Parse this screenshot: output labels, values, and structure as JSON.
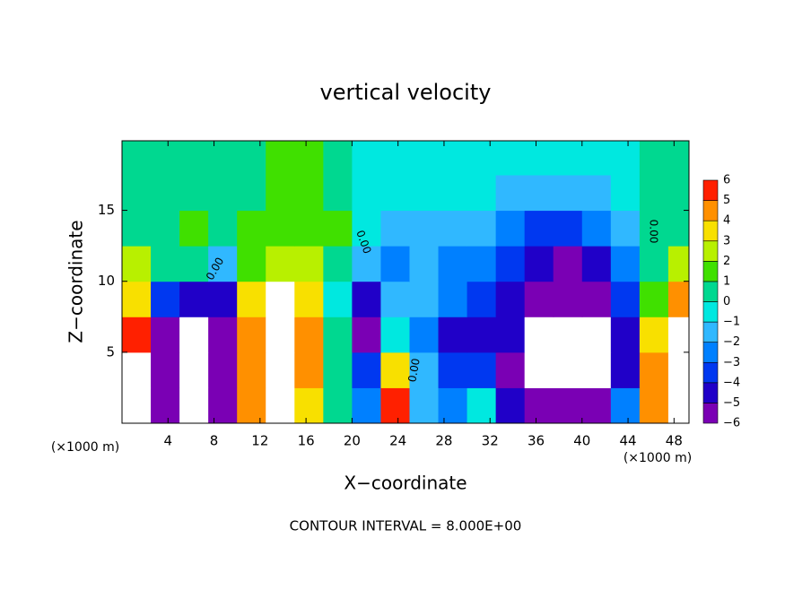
{
  "chart_data": {
    "type": "heatmap",
    "title": "vertical velocity",
    "x_label": "X−coordinate",
    "y_label": "Z−coordinate",
    "x_unit": "(×1000 m)",
    "y_unit": "(×1000 m)",
    "footer": "CONTOUR INTERVAL = 8.000E+00",
    "contour_labels": [
      "0.00",
      "0.00",
      "0.00",
      "0.00"
    ],
    "xlim": [
      0,
      49.3
    ],
    "ylim": [
      0,
      19.9
    ],
    "xticks": [
      4,
      8,
      12,
      16,
      20,
      24,
      28,
      32,
      36,
      40,
      44,
      48
    ],
    "yticks": [
      5,
      10,
      15
    ],
    "x_edges": [
      0,
      2.5,
      5,
      7.5,
      10,
      12.5,
      15,
      17.5,
      20,
      22.5,
      25,
      27.5,
      30,
      32.5,
      35,
      37.5,
      40,
      42.5,
      45,
      47.5,
      49.3
    ],
    "z_edges": [
      0,
      2.5,
      5,
      7.5,
      10,
      12.5,
      15,
      17.5,
      19.9
    ],
    "values": [
      [
        7,
        -6,
        -9,
        -5,
        5,
        9,
        4,
        0.5,
        -2,
        6,
        -1.5,
        -2,
        0,
        -4,
        -5,
        -5,
        -5,
        -2,
        5,
        8
      ],
      [
        8,
        -6,
        -10,
        -5,
        5,
        10,
        5,
        0.5,
        -3,
        4,
        -1.5,
        -3,
        -3,
        -5,
        -7,
        -8,
        -9,
        -4,
        5,
        9
      ],
      [
        6,
        -5,
        -8,
        -5,
        5,
        10,
        5,
        0.5,
        -5,
        0,
        -2,
        -4,
        -4,
        -4,
        -7,
        -8,
        -7,
        -4,
        4,
        8
      ],
      [
        4,
        -3,
        -4,
        -4,
        4,
        8,
        4,
        0,
        -4,
        -1,
        -1.5,
        -2,
        -3,
        -4,
        -5,
        -6,
        -5,
        -3,
        2,
        5
      ],
      [
        3,
        1,
        0.5,
        -1,
        2,
        3,
        3,
        1,
        -1,
        -2,
        -1.5,
        -2,
        -2,
        -3,
        -4,
        -5,
        -4,
        -2,
        0.5,
        3
      ],
      [
        1,
        0.5,
        2,
        1,
        1.5,
        2,
        2,
        1.5,
        -0.5,
        -1.5,
        -1,
        -1,
        -1.5,
        -2,
        -3,
        -3,
        -2,
        -1,
        0.5,
        1
      ],
      [
        0.5,
        0.5,
        1,
        1,
        1,
        2,
        2,
        1,
        0,
        -0.5,
        -0.5,
        -0.5,
        -0.5,
        -1,
        -1,
        -1.5,
        -1,
        -0.5,
        0.5,
        0.5
      ],
      [
        0.5,
        0.5,
        0.5,
        0.5,
        1,
        1.5,
        1.5,
        1,
        0,
        -0.5,
        -0.5,
        -0.5,
        -0.5,
        -0.5,
        -0.5,
        -0.5,
        -0.5,
        -0.5,
        0.5,
        0.5
      ]
    ],
    "out_of_range_color": "#ffffff",
    "colorbar": {
      "levels": [
        {
          "value": -6,
          "label": "−6"
        },
        {
          "value": -5,
          "label": "−5"
        },
        {
          "value": -4,
          "label": "−4"
        },
        {
          "value": -3,
          "label": "−3"
        },
        {
          "value": -2,
          "label": "−2"
        },
        {
          "value": -1,
          "label": "−1"
        },
        0,
        1,
        2,
        3,
        4,
        5,
        6
      ],
      "colors": [
        "#7a00b4",
        "#2000c8",
        "#0038f0",
        "#0080ff",
        "#30b8ff",
        "#00e8e0",
        "#00d890",
        "#40e000",
        "#b8f000",
        "#f8e000",
        "#ff9000",
        "#ff2000",
        "#ff9898"
      ]
    }
  }
}
